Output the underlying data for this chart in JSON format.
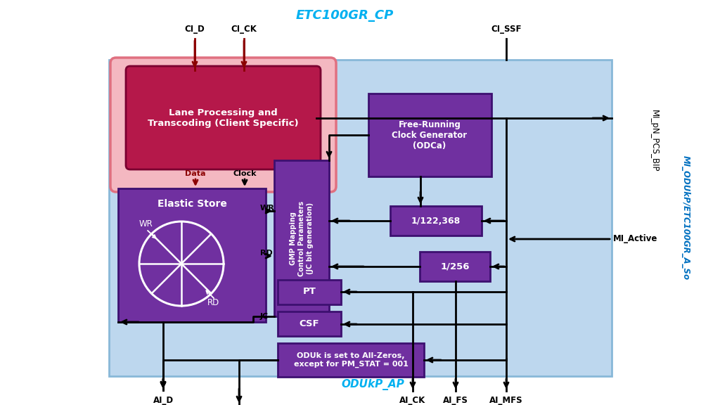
{
  "bg_inner": "#bdd7ee",
  "bg_highlight": "#f4b8c1",
  "lane_fc": "#b5184a",
  "lane_ec": "#7a0030",
  "elastic_fc": "#7030a0",
  "elastic_ec": "#3d1070",
  "gmp_fc": "#7030a0",
  "free_fc": "#7030a0",
  "div_fc": "#7030a0",
  "pt_csf_fc": "#7030a0",
  "oduk_fc": "#7030a0",
  "title_color": "#00b0f0",
  "right_color": "#0070c0",
  "dark_red": "#8b0000",
  "black": "#000000",
  "white": "#ffffff",
  "title_top": "ETC100GR_CP",
  "title_bottom": "ODUkP_AP",
  "right_label_italic": "MI_ODUkP/ETC100GR_A_So",
  "right_label_plain": "MI_pN_PCS_BIP"
}
